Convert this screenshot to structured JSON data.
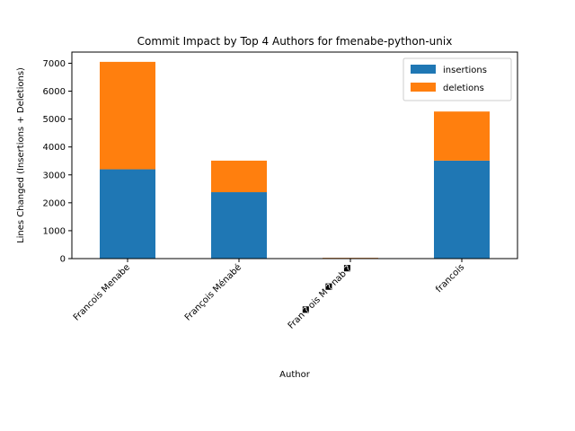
{
  "chart_data": {
    "type": "bar",
    "stacked": true,
    "title": "Commit Impact by Top 4 Authors for fmenabe-python-unix",
    "xlabel": "Author",
    "ylabel": "Lines Changed (Insertions + Deletions)",
    "categories": [
      "Francois Menabe",
      "François Ménabé",
      "Fran�ois M�nab�",
      "francois"
    ],
    "series": [
      {
        "name": "insertions",
        "color": "#1f77b4",
        "values": [
          3200,
          2380,
          20,
          3510
        ]
      },
      {
        "name": "deletions",
        "color": "#ff7f0e",
        "values": [
          3850,
          1130,
          10,
          1760
        ]
      }
    ],
    "ylim": [
      0,
      7400
    ],
    "yticks": [
      0,
      1000,
      2000,
      3000,
      4000,
      5000,
      6000,
      7000
    ],
    "ytick_labels": [
      "0",
      "1000",
      "2000",
      "3000",
      "4000",
      "5000",
      "6000",
      "7000"
    ],
    "grid": false,
    "legend_position": "top-right"
  }
}
